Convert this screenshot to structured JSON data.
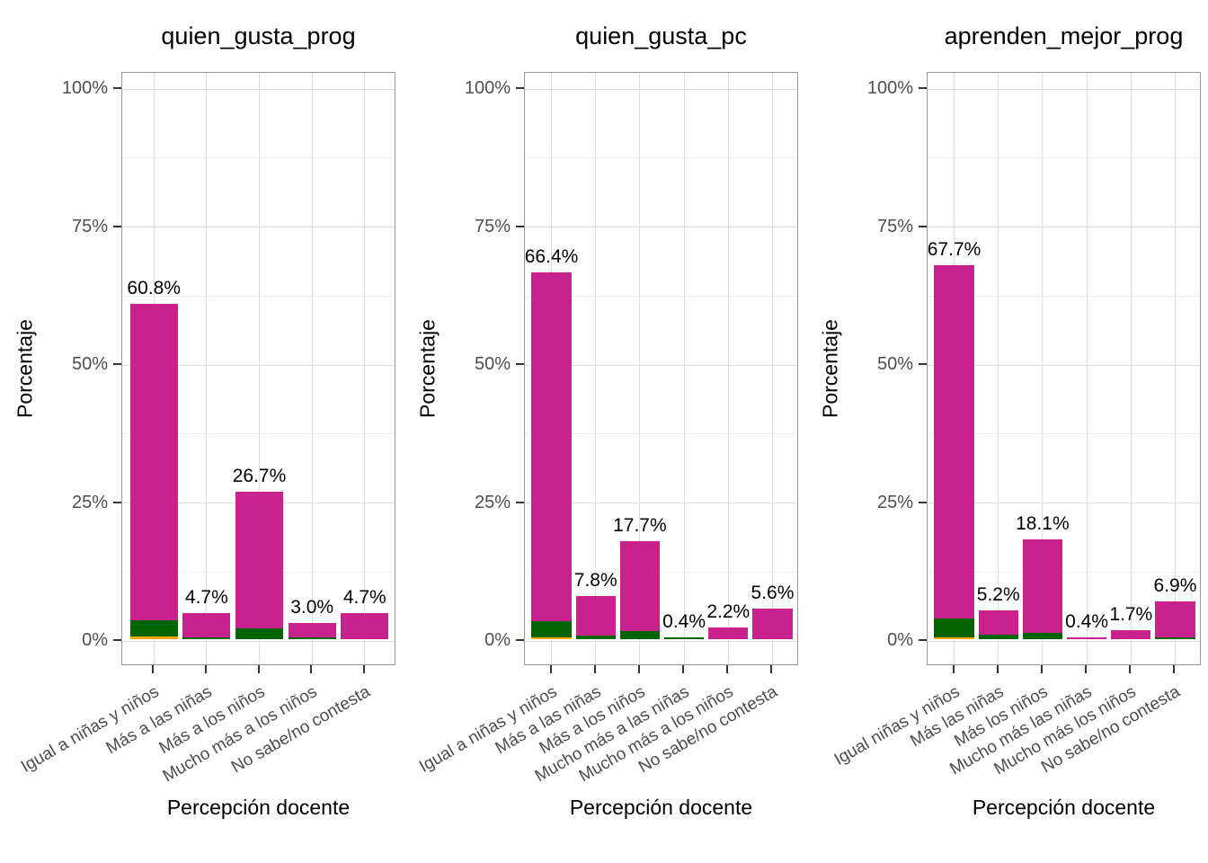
{
  "figure": {
    "background": "#FFFFFF",
    "axis_text_color": "#4D4D4D",
    "axis_title_color": "#000000",
    "panel_border_color": "#999999",
    "grid_major_color": "#DEDEDE",
    "grid_minor_color": "#EFEFEF",
    "tick_color": "#333333"
  },
  "colors": {
    "magenta": "#C9218E",
    "green": "#006400",
    "orange": "#FFA500"
  },
  "chart_data": [
    {
      "type": "bar",
      "title": "quien_gusta_prog",
      "xlabel": "Percepción docente",
      "ylabel": "Porcentaje",
      "ylim": [
        0,
        100
      ],
      "grid": "on",
      "legend": "none",
      "yticks": [
        {
          "value": 0,
          "label": "0%"
        },
        {
          "value": 25,
          "label": "25%"
        },
        {
          "value": 50,
          "label": "50%"
        },
        {
          "value": 75,
          "label": "75%"
        },
        {
          "value": 100,
          "label": "100%"
        }
      ],
      "grid_minor_values": [
        12.5,
        37.5,
        62.5,
        87.5
      ],
      "categories": [
        "Igual a niñas y niños",
        "Más a las niñas",
        "Más a los niños",
        "Mucho más a los niños",
        "No sabe/no contesta"
      ],
      "bars": [
        {
          "label": "60.8%",
          "total": 60.8,
          "segments": [
            {
              "color": "orange",
              "value": 0.5
            },
            {
              "color": "green",
              "value": 3.0
            },
            {
              "color": "magenta",
              "value": 57.3
            }
          ]
        },
        {
          "label": "4.7%",
          "total": 4.7,
          "segments": [
            {
              "color": "green",
              "value": 0.3
            },
            {
              "color": "magenta",
              "value": 4.4
            }
          ]
        },
        {
          "label": "26.7%",
          "total": 26.7,
          "segments": [
            {
              "color": "green",
              "value": 2.0
            },
            {
              "color": "magenta",
              "value": 24.7
            }
          ]
        },
        {
          "label": "3.0%",
          "total": 3.0,
          "segments": [
            {
              "color": "green",
              "value": 0.3
            },
            {
              "color": "magenta",
              "value": 2.7
            }
          ]
        },
        {
          "label": "4.7%",
          "total": 4.7,
          "segments": [
            {
              "color": "magenta",
              "value": 4.7
            }
          ]
        }
      ]
    },
    {
      "type": "bar",
      "title": "quien_gusta_pc",
      "xlabel": "Percepción docente",
      "ylabel": "Porcentaje",
      "ylim": [
        0,
        100
      ],
      "grid": "on",
      "legend": "none",
      "yticks": [
        {
          "value": 0,
          "label": "0%"
        },
        {
          "value": 25,
          "label": "25%"
        },
        {
          "value": 50,
          "label": "50%"
        },
        {
          "value": 75,
          "label": "75%"
        },
        {
          "value": 100,
          "label": "100%"
        }
      ],
      "grid_minor_values": [
        12.5,
        37.5,
        62.5,
        87.5
      ],
      "categories": [
        "Igual a niñas y niños",
        "Más a las niñas",
        "Más a los niños",
        "Mucho más a las niñas",
        "Mucho más a los niños",
        "No sabe/no contesta"
      ],
      "bars": [
        {
          "label": "66.4%",
          "total": 66.4,
          "segments": [
            {
              "color": "orange",
              "value": 0.4
            },
            {
              "color": "green",
              "value": 2.9
            },
            {
              "color": "magenta",
              "value": 63.1
            }
          ]
        },
        {
          "label": "7.8%",
          "total": 7.8,
          "segments": [
            {
              "color": "green",
              "value": 0.7
            },
            {
              "color": "magenta",
              "value": 7.1
            }
          ]
        },
        {
          "label": "17.7%",
          "total": 17.7,
          "segments": [
            {
              "color": "green",
              "value": 1.5
            },
            {
              "color": "magenta",
              "value": 16.2
            }
          ]
        },
        {
          "label": "0.4%",
          "total": 0.4,
          "segments": [
            {
              "color": "green",
              "value": 0.4
            }
          ]
        },
        {
          "label": "2.2%",
          "total": 2.2,
          "segments": [
            {
              "color": "magenta",
              "value": 2.2
            }
          ]
        },
        {
          "label": "5.6%",
          "total": 5.6,
          "segments": [
            {
              "color": "magenta",
              "value": 5.6
            }
          ]
        }
      ]
    },
    {
      "type": "bar",
      "title": "aprenden_mejor_prog",
      "xlabel": "Percepción docente",
      "ylabel": "Porcentaje",
      "ylim": [
        0,
        100
      ],
      "grid": "on",
      "legend": "none",
      "yticks": [
        {
          "value": 0,
          "label": "0%"
        },
        {
          "value": 25,
          "label": "25%"
        },
        {
          "value": 50,
          "label": "50%"
        },
        {
          "value": 75,
          "label": "75%"
        },
        {
          "value": 100,
          "label": "100%"
        }
      ],
      "grid_minor_values": [
        12.5,
        37.5,
        62.5,
        87.5
      ],
      "categories": [
        "Igual niñas y niños",
        "Más las niñas",
        "Más los niños",
        "Mucho más las niñas",
        "Mucho más los niños",
        "No sabe/no contesta"
      ],
      "bars": [
        {
          "label": "67.7%",
          "total": 67.7,
          "segments": [
            {
              "color": "orange",
              "value": 0.4
            },
            {
              "color": "green",
              "value": 3.3
            },
            {
              "color": "magenta",
              "value": 64.0
            }
          ]
        },
        {
          "label": "5.2%",
          "total": 5.2,
          "segments": [
            {
              "color": "green",
              "value": 0.8
            },
            {
              "color": "magenta",
              "value": 4.4
            }
          ]
        },
        {
          "label": "18.1%",
          "total": 18.1,
          "segments": [
            {
              "color": "green",
              "value": 1.1
            },
            {
              "color": "magenta",
              "value": 17.0
            }
          ]
        },
        {
          "label": "0.4%",
          "total": 0.4,
          "segments": [
            {
              "color": "magenta",
              "value": 0.4
            }
          ]
        },
        {
          "label": "1.7%",
          "total": 1.7,
          "segments": [
            {
              "color": "magenta",
              "value": 1.7
            }
          ]
        },
        {
          "label": "6.9%",
          "total": 6.9,
          "segments": [
            {
              "color": "green",
              "value": 0.3
            },
            {
              "color": "magenta",
              "value": 6.6
            }
          ]
        }
      ]
    }
  ]
}
